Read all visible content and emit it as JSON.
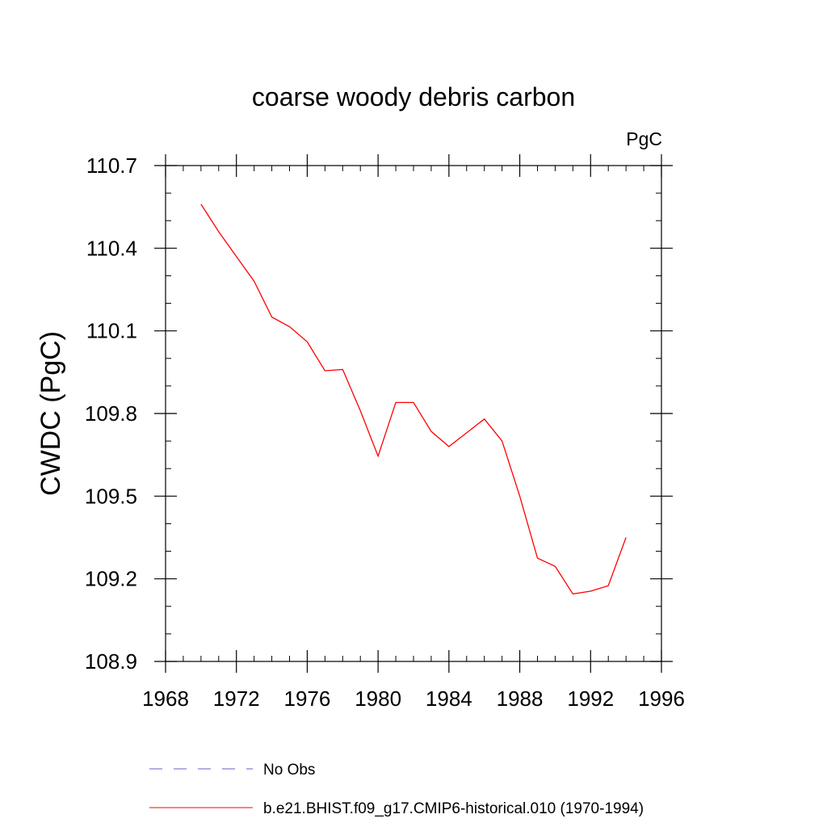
{
  "chart_data": {
    "type": "line",
    "title": "coarse woody debris carbon",
    "units": "PgC",
    "xlabel": "",
    "ylabel": "CWDC  (PgC)",
    "xlim": [
      1968,
      1996
    ],
    "ylim": [
      108.9,
      110.7
    ],
    "x_ticks": [
      1968,
      1972,
      1976,
      1980,
      1984,
      1988,
      1992,
      1996
    ],
    "y_ticks": [
      108.9,
      109.2,
      109.5,
      109.8,
      110.1,
      110.4,
      110.7
    ],
    "x_tick_labels": [
      "1968",
      "1972",
      "1976",
      "1980",
      "1984",
      "1988",
      "1992",
      "1996"
    ],
    "y_tick_labels": [
      "108.9",
      "109.2",
      "109.5",
      "109.8",
      "110.1",
      "110.4",
      "110.7"
    ],
    "grid": false,
    "legend_position": "bottom",
    "series": [
      {
        "name": "b.e21.BHIST.f09_g17.CMIP6-historical.010 (1970-1994)",
        "color": "#ff0000",
        "line_style": "solid",
        "x": [
          1970,
          1971,
          1972,
          1973,
          1974,
          1975,
          1976,
          1977,
          1978,
          1979,
          1980,
          1981,
          1982,
          1983,
          1984,
          1985,
          1986,
          1987,
          1988,
          1989,
          1990,
          1991,
          1992,
          1993,
          1994
        ],
        "values": [
          110.56,
          110.46,
          110.37,
          110.28,
          110.15,
          110.115,
          110.06,
          109.955,
          109.96,
          109.81,
          109.645,
          109.84,
          109.84,
          109.735,
          109.68,
          109.73,
          109.78,
          109.7,
          109.5,
          109.275,
          109.245,
          109.145,
          109.155,
          109.175,
          109.35
        ]
      }
    ],
    "legend": [
      {
        "label": "No Obs",
        "color": "#6a5acd",
        "line_style": "dashed"
      },
      {
        "label": "b.e21.BHIST.f09_g17.CMIP6-historical.010 (1970-1994)",
        "color": "#ff0000",
        "line_style": "solid"
      }
    ]
  }
}
